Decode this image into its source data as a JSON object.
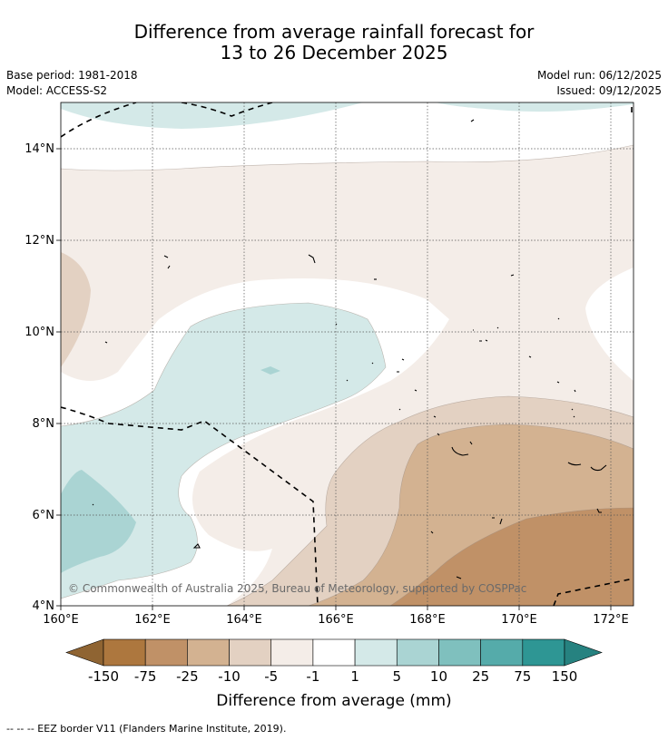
{
  "title": {
    "line1": "Difference from average rainfall forecast for",
    "line2": "13 to 26 December 2025"
  },
  "meta": {
    "base_period": "Base period: 1981-2018",
    "model": "Model: ACCESS-S2",
    "model_run": "Model run: 06/12/2025",
    "issued": "Issued: 09/12/2025"
  },
  "map": {
    "lat_labels": [
      "14°N",
      "12°N",
      "10°N",
      "8°N",
      "6°N",
      "4°N"
    ],
    "lon_labels": [
      "160°E",
      "162°E",
      "164°E",
      "166°E",
      "168°E",
      "170°E",
      "172°E"
    ],
    "copyright": "© Commonwealth of Australia 2025, Bureau of Meteorology, supported by COSPPac"
  },
  "colorbar": {
    "ticks": [
      "-150",
      "-75",
      "-25",
      "-10",
      "-5",
      "-1",
      "1",
      "5",
      "10",
      "25",
      "75",
      "150"
    ],
    "colors": [
      "#8f6432",
      "#ad773e",
      "#c09167",
      "#d3b291",
      "#e3d1c2",
      "#f4ede8",
      "#ffffff",
      "#d4e9e8",
      "#aad4d3",
      "#7fc0be",
      "#55abaa",
      "#2e9694",
      "#268280"
    ],
    "label": "Difference from average (mm)"
  },
  "footer": {
    "eez_note": "--  --  -- EEZ border V11 (Flanders Marine Institute, 2019)."
  }
}
